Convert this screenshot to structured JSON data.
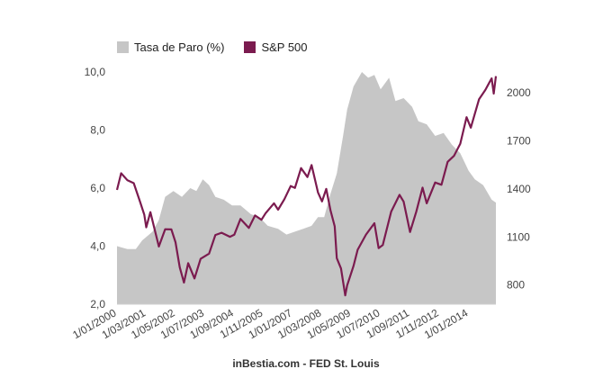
{
  "chart_data": {
    "type": "area+line",
    "legend_position": "top-left",
    "grid": false,
    "source": "inBestia.com - FED St. Louis",
    "colors": {
      "unemployment": "#c6c6c6",
      "sp500": "#7b1b4f"
    },
    "x_axis": {
      "range": [
        "2000-01-01",
        "2015-02-01"
      ],
      "tick_labels": [
        "1/01/2000",
        "1/03/2001",
        "1/05/2002",
        "1/07/2003",
        "1/09/2004",
        "1/11/2005",
        "1/01/2007",
        "1/03/2008",
        "1/05/2009",
        "1/07/2010",
        "1/09/2011",
        "1/11/2012",
        "1/01/2014"
      ],
      "tick_dates": [
        "2000-01-01",
        "2001-03-01",
        "2002-05-01",
        "2003-07-01",
        "2004-09-01",
        "2005-11-01",
        "2007-01-01",
        "2008-03-01",
        "2009-05-01",
        "2010-07-01",
        "2011-09-01",
        "2012-11-01",
        "2014-01-01"
      ]
    },
    "y_left": {
      "ylim": [
        2,
        10
      ],
      "tick_labels": [
        "10,0",
        "8,0",
        "6,0",
        "4,0",
        "2,0"
      ],
      "ticks": [
        10,
        8,
        6,
        4,
        2
      ]
    },
    "y_right": {
      "ylim": [
        680,
        2130
      ],
      "tick_labels": [
        "2000",
        "1700",
        "1400",
        "1100",
        "800"
      ],
      "ticks": [
        2000,
        1700,
        1400,
        1100,
        800
      ]
    },
    "series": [
      {
        "name": "Tasa de Paro (%)",
        "kind": "area",
        "axis": "left",
        "points": [
          [
            "2000-01-01",
            4.0
          ],
          [
            "2000-06-01",
            3.9
          ],
          [
            "2000-10-01",
            3.9
          ],
          [
            "2001-01-01",
            4.2
          ],
          [
            "2001-06-01",
            4.5
          ],
          [
            "2001-09-01",
            4.9
          ],
          [
            "2001-12-01",
            5.7
          ],
          [
            "2002-04-01",
            5.9
          ],
          [
            "2002-08-01",
            5.7
          ],
          [
            "2002-12-01",
            6.0
          ],
          [
            "2003-03-01",
            5.9
          ],
          [
            "2003-06-01",
            6.3
          ],
          [
            "2003-09-01",
            6.1
          ],
          [
            "2003-12-01",
            5.7
          ],
          [
            "2004-04-01",
            5.6
          ],
          [
            "2004-08-01",
            5.4
          ],
          [
            "2004-12-01",
            5.4
          ],
          [
            "2005-05-01",
            5.1
          ],
          [
            "2005-09-01",
            5.0
          ],
          [
            "2006-01-01",
            4.7
          ],
          [
            "2006-06-01",
            4.6
          ],
          [
            "2006-10-01",
            4.4
          ],
          [
            "2007-02-01",
            4.5
          ],
          [
            "2007-06-01",
            4.6
          ],
          [
            "2007-10-01",
            4.7
          ],
          [
            "2008-01-01",
            5.0
          ],
          [
            "2008-04-01",
            5.0
          ],
          [
            "2008-07-01",
            5.8
          ],
          [
            "2008-10-01",
            6.5
          ],
          [
            "2009-01-01",
            7.8
          ],
          [
            "2009-03-01",
            8.7
          ],
          [
            "2009-06-01",
            9.5
          ],
          [
            "2009-10-01",
            10.0
          ],
          [
            "2010-01-01",
            9.8
          ],
          [
            "2010-04-01",
            9.9
          ],
          [
            "2010-07-01",
            9.4
          ],
          [
            "2010-11-01",
            9.8
          ],
          [
            "2011-02-01",
            9.0
          ],
          [
            "2011-06-01",
            9.1
          ],
          [
            "2011-10-01",
            8.8
          ],
          [
            "2012-01-01",
            8.3
          ],
          [
            "2012-05-01",
            8.2
          ],
          [
            "2012-09-01",
            7.8
          ],
          [
            "2013-01-01",
            7.9
          ],
          [
            "2013-05-01",
            7.5
          ],
          [
            "2013-09-01",
            7.2
          ],
          [
            "2014-01-01",
            6.6
          ],
          [
            "2014-04-01",
            6.3
          ],
          [
            "2014-08-01",
            6.1
          ],
          [
            "2014-12-01",
            5.6
          ],
          [
            "2015-02-01",
            5.5
          ]
        ]
      },
      {
        "name": "S&P 500",
        "kind": "line",
        "axis": "right",
        "points": [
          [
            "2000-01-01",
            1394
          ],
          [
            "2000-03-01",
            1498
          ],
          [
            "2000-06-01",
            1454
          ],
          [
            "2000-09-01",
            1436
          ],
          [
            "2000-12-01",
            1320
          ],
          [
            "2001-02-01",
            1239
          ],
          [
            "2001-03-01",
            1160
          ],
          [
            "2001-05-01",
            1255
          ],
          [
            "2001-09-01",
            1040
          ],
          [
            "2001-12-01",
            1148
          ],
          [
            "2002-03-01",
            1147
          ],
          [
            "2002-05-01",
            1067
          ],
          [
            "2002-07-01",
            911
          ],
          [
            "2002-09-01",
            815
          ],
          [
            "2002-11-01",
            936
          ],
          [
            "2003-02-01",
            841
          ],
          [
            "2003-05-01",
            963
          ],
          [
            "2003-09-01",
            996
          ],
          [
            "2003-12-01",
            1112
          ],
          [
            "2004-03-01",
            1126
          ],
          [
            "2004-07-01",
            1101
          ],
          [
            "2004-09-01",
            1114
          ],
          [
            "2004-12-01",
            1212
          ],
          [
            "2005-04-01",
            1156
          ],
          [
            "2005-07-01",
            1234
          ],
          [
            "2005-10-01",
            1207
          ],
          [
            "2005-12-01",
            1248
          ],
          [
            "2006-04-01",
            1310
          ],
          [
            "2006-06-01",
            1270
          ],
          [
            "2006-09-01",
            1336
          ],
          [
            "2006-12-01",
            1418
          ],
          [
            "2007-02-01",
            1406
          ],
          [
            "2007-05-01",
            1530
          ],
          [
            "2007-08-01",
            1474
          ],
          [
            "2007-10-01",
            1549
          ],
          [
            "2008-01-01",
            1378
          ],
          [
            "2008-03-01",
            1322
          ],
          [
            "2008-05-01",
            1400
          ],
          [
            "2008-07-01",
            1267
          ],
          [
            "2008-09-01",
            1166
          ],
          [
            "2008-10-01",
            968
          ],
          [
            "2008-12-01",
            903
          ],
          [
            "2009-02-01",
            735
          ],
          [
            "2009-03-01",
            797
          ],
          [
            "2009-06-01",
            919
          ],
          [
            "2009-08-01",
            1020
          ],
          [
            "2009-12-01",
            1115
          ],
          [
            "2010-04-01",
            1186
          ],
          [
            "2010-06-01",
            1030
          ],
          [
            "2010-08-01",
            1049
          ],
          [
            "2010-12-01",
            1257
          ],
          [
            "2011-04-01",
            1363
          ],
          [
            "2011-06-01",
            1320
          ],
          [
            "2011-09-01",
            1131
          ],
          [
            "2011-12-01",
            1257
          ],
          [
            "2012-03-01",
            1408
          ],
          [
            "2012-05-01",
            1310
          ],
          [
            "2012-09-01",
            1440
          ],
          [
            "2012-12-01",
            1426
          ],
          [
            "2013-03-01",
            1569
          ],
          [
            "2013-06-01",
            1606
          ],
          [
            "2013-09-01",
            1682
          ],
          [
            "2013-12-01",
            1848
          ],
          [
            "2014-02-01",
            1782
          ],
          [
            "2014-06-01",
            1960
          ],
          [
            "2014-09-01",
            2018
          ],
          [
            "2014-11-01",
            2067
          ],
          [
            "2014-12-01",
            2090
          ],
          [
            "2015-01-01",
            1995
          ],
          [
            "2015-02-01",
            2104
          ]
        ]
      }
    ]
  }
}
